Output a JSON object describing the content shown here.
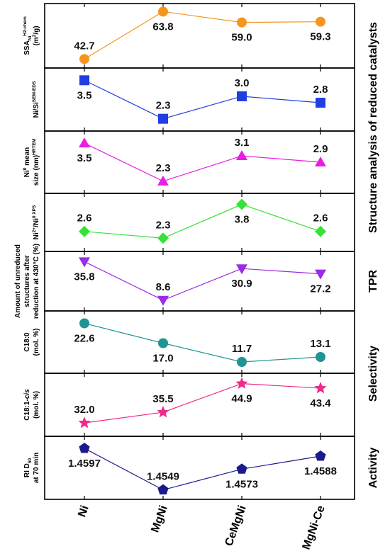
{
  "chart_data": {
    "type": "line",
    "categories": [
      "Ni",
      "MgNi",
      "CeMgNi",
      "MgNi-Ce"
    ],
    "panels": [
      {
        "key": "ssa",
        "ylabel": [
          "SSA",
          "Ni",
          "H2-chem",
          "(m",
          "2",
          "/g)"
        ],
        "values": [
          42.7,
          63.8,
          59.0,
          59.3
        ],
        "labels": [
          "42.7",
          "63.8",
          "59.0",
          "59.3"
        ],
        "ylim": [
          40.6,
          65.5
        ],
        "label_pos": [
          "above",
          "below",
          "below",
          "below"
        ],
        "color": "#F7941D",
        "marker": "circle"
      },
      {
        "key": "nisi",
        "ylabel": [
          "Ni/Si",
          "SEM-EDS"
        ],
        "values": [
          3.5,
          2.3,
          3.0,
          2.8
        ],
        "labels": [
          "3.5",
          "2.3",
          "3.0",
          "2.8"
        ],
        "ylim": [
          2.05,
          3.75
        ],
        "label_pos": [
          "below",
          "above",
          "above",
          "above"
        ],
        "color": "#1F3FE0",
        "marker": "square"
      },
      {
        "key": "nisize",
        "ylabel": [
          "Ni",
          "0",
          " mean",
          "size (nm)",
          "HRTEM"
        ],
        "values": [
          3.5,
          2.3,
          3.1,
          2.9
        ],
        "labels": [
          "3.5",
          "2.3",
          "3.1",
          "2.9"
        ],
        "ylim": [
          2.05,
          3.75
        ],
        "label_pos": [
          "below",
          "above",
          "above",
          "above"
        ],
        "color": "#E81EE3",
        "marker": "triangle-up"
      },
      {
        "key": "xps",
        "ylabel": [
          "Ni",
          "2+",
          "/Ni",
          "0",
          " XPS"
        ],
        "values": [
          2.6,
          2.3,
          3.8,
          2.6
        ],
        "labels": [
          "2.6",
          "2.3",
          "3.8",
          "2.6"
        ],
        "ylim": [
          1.9,
          4.1
        ],
        "label_pos": [
          "above",
          "above",
          "below",
          "above"
        ],
        "color": "#3AE03A",
        "marker": "diamond"
      },
      {
        "key": "tpr",
        "ylabel": [
          "Amount of unreduced",
          "structures after",
          "reduction at 430°C (%)"
        ],
        "values": [
          35.8,
          8.6,
          30.9,
          27.2
        ],
        "labels": [
          "35.8",
          "8.6",
          "30.9",
          "27.2"
        ],
        "ylim": [
          4.0,
          40.0
        ],
        "label_pos": [
          "below",
          "above",
          "below",
          "below"
        ],
        "color": "#9B2BE6",
        "marker": "triangle-down"
      },
      {
        "key": "c180",
        "ylabel": [
          "C18:0",
          "(mol. %)"
        ],
        "values": [
          22.6,
          17.0,
          11.7,
          13.1
        ],
        "labels": [
          "22.6",
          "17.0",
          "11.7",
          "13.1"
        ],
        "ylim": [
          9.7,
          24.9
        ],
        "label_pos": [
          "below",
          "below",
          "above",
          "above"
        ],
        "color": "#1E9494",
        "marker": "circle"
      },
      {
        "key": "c181",
        "ylabel": [
          "C18:1-",
          "cis",
          "(mol. %)"
        ],
        "values": [
          32.0,
          35.5,
          44.9,
          43.4
        ],
        "labels": [
          "32.0",
          "35.5",
          "44.9",
          "43.4"
        ],
        "ylim": [
          29.0,
          46.9
        ],
        "label_pos": [
          "above",
          "above",
          "below",
          "below"
        ],
        "color": "#EE2A8A",
        "marker": "star"
      },
      {
        "key": "ri",
        "ylabel": [
          "RI D",
          "50",
          "at 70 min"
        ],
        "values": [
          1.4597,
          1.4549,
          1.4573,
          1.4588
        ],
        "labels": [
          "1.4597",
          "1.4549",
          "1.4573",
          "1.4588"
        ],
        "ylim": [
          1.4543,
          1.4606
        ],
        "label_pos": [
          "below",
          "above",
          "below",
          "below"
        ],
        "color": "#1A1A8C",
        "marker": "pentagon"
      }
    ],
    "groups": [
      {
        "label": "Structure analysis of reduced catalysts",
        "panels": [
          0,
          3
        ]
      },
      {
        "label": "TPR",
        "panels": [
          4,
          4
        ]
      },
      {
        "label": "Selectivity",
        "panels": [
          5,
          6
        ]
      },
      {
        "label": "Activity",
        "panels": [
          7,
          7
        ]
      }
    ]
  }
}
